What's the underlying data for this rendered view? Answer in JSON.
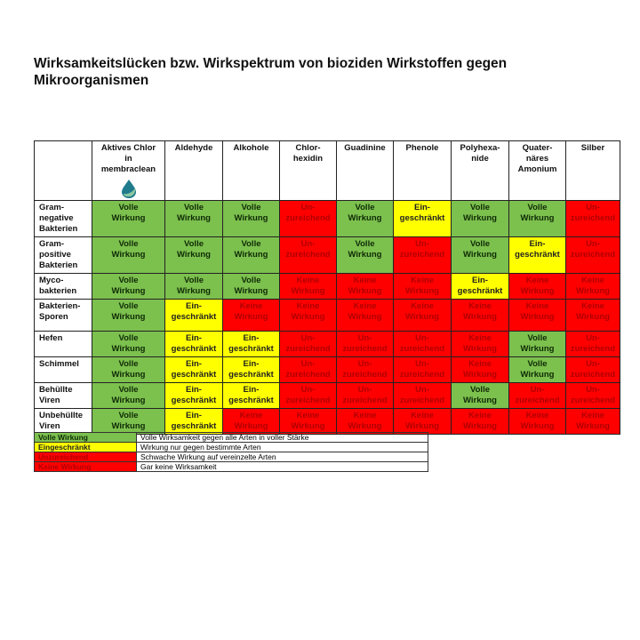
{
  "title": "Wirksamkeitslücken bzw. Wirkspektrum von bioziden Wirkstoffen gegen Mikroorganismen",
  "colors": {
    "V": "#7cc04e",
    "E": "#ffff00",
    "U": "#ff0000",
    "K": "#ff0000"
  },
  "statuses": {
    "V": [
      "Volle",
      "Wirkung"
    ],
    "E": [
      "Ein-",
      "geschränkt"
    ],
    "U": [
      "Un-",
      "zureichend"
    ],
    "K": [
      "Keine",
      "Wirkung"
    ]
  },
  "columns": [
    {
      "label": [
        "Aktives Chlor",
        "in",
        "membraclean"
      ],
      "icon": "water-drop-logo"
    },
    {
      "label": [
        "Aldehyde"
      ]
    },
    {
      "label": [
        "Alkohole"
      ]
    },
    {
      "label": [
        "Chlor-",
        "hexidin"
      ]
    },
    {
      "label": [
        "Guadinine"
      ]
    },
    {
      "label": [
        "Phenole"
      ]
    },
    {
      "label": [
        "Polyhexa-",
        "nide"
      ]
    },
    {
      "label": [
        "Quater-",
        "näres",
        "Amonium"
      ]
    },
    {
      "label": [
        "Silber"
      ]
    }
  ],
  "rows": [
    {
      "label": [
        "Gram-",
        "negative",
        "Bakterien"
      ],
      "cells": [
        "V",
        "V",
        "V",
        "U",
        "V",
        "E",
        "V",
        "V",
        "U"
      ]
    },
    {
      "label": [
        "Gram-",
        "positive",
        "Bakterien"
      ],
      "cells": [
        "V",
        "V",
        "V",
        "U",
        "V",
        "U",
        "V",
        "E",
        "U"
      ]
    },
    {
      "label": [
        "Myco-",
        "bakterien"
      ],
      "cells": [
        "V",
        "V",
        "V",
        "K",
        "K",
        "K",
        "E",
        "K",
        "K"
      ]
    },
    {
      "label": [
        "Bakterien-",
        "Sporen"
      ],
      "cells": [
        "V",
        "E",
        "K",
        "K",
        "K",
        "K",
        "K",
        "K",
        "K"
      ]
    },
    {
      "label": [
        "Hefen"
      ],
      "cells": [
        "V",
        "E",
        "E",
        "U",
        "U",
        "U",
        "K",
        "V",
        "U"
      ]
    },
    {
      "label": [
        "Schimmel"
      ],
      "cells": [
        "V",
        "E",
        "E",
        "U",
        "U",
        "U",
        "K",
        "V",
        "U"
      ]
    },
    {
      "label": [
        "Behüllte",
        "Viren"
      ],
      "cells": [
        "V",
        "E",
        "E",
        "U",
        "U",
        "U",
        "V",
        "U",
        "U"
      ]
    },
    {
      "label": [
        "Unbehüllte",
        "Viren"
      ],
      "cells": [
        "V",
        "E",
        "K",
        "K",
        "K",
        "K",
        "K",
        "K",
        "K"
      ]
    }
  ],
  "legend": [
    {
      "code": "V",
      "key": "Volle Wirkung",
      "text": "Volle Wirksamkeit gegen alle Arten in voller Stärke"
    },
    {
      "code": "E",
      "key": "Eingeschränkt",
      "text": "Wirkung nur gegen bestimmte Arten"
    },
    {
      "code": "U",
      "key": "Unzureichend",
      "text": "Schwache Wirkung auf vereinzelte Arten"
    },
    {
      "code": "K",
      "key": "Keine Wirkung",
      "text": "Gar keine Wirksamkeit"
    }
  ]
}
